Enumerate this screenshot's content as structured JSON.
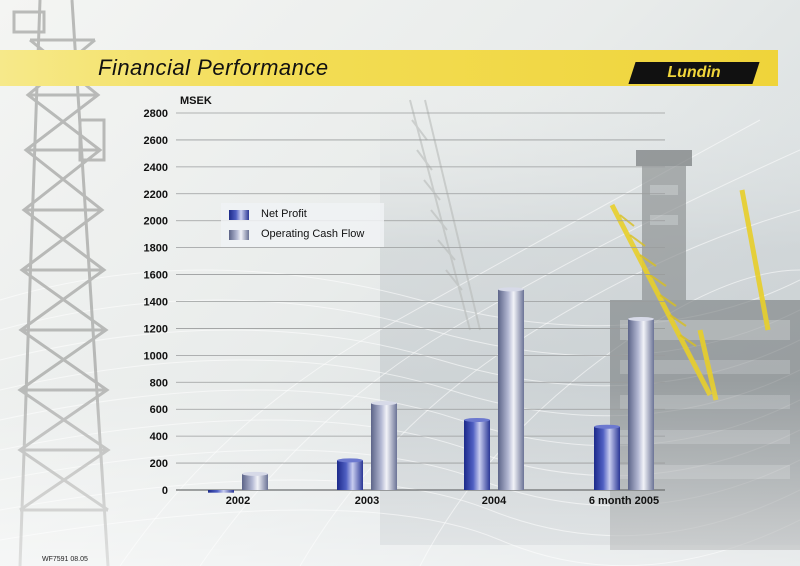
{
  "header": {
    "title": "Financial Performance",
    "logo_text": "Lundin"
  },
  "footer": {
    "code": "WF7591 08.05"
  },
  "colors": {
    "title_bar": "#f3dd55",
    "net_profit": "#3a46a8",
    "operating_cash_flow": "#8e95b8",
    "logo_bg": "#111111",
    "logo_text": "#f1d63b"
  },
  "chart_data": {
    "type": "bar",
    "unit_label": "MSEK",
    "categories": [
      "2002",
      "2003",
      "2004",
      "6 month 2005"
    ],
    "series": [
      {
        "name": "Net Profit",
        "values": [
          -20,
          220,
          520,
          470
        ]
      },
      {
        "name": "Operating Cash Flow",
        "values": [
          120,
          645,
          1490,
          1270
        ]
      }
    ],
    "ylim": [
      0,
      2800
    ],
    "yticks": [
      "0",
      "200",
      "400",
      "600",
      "800",
      "1000",
      "1200",
      "1400",
      "1600",
      "1800",
      "2000",
      "2200",
      "2400",
      "2600",
      "2800"
    ],
    "grid": true,
    "legend_position": "upper-left"
  }
}
